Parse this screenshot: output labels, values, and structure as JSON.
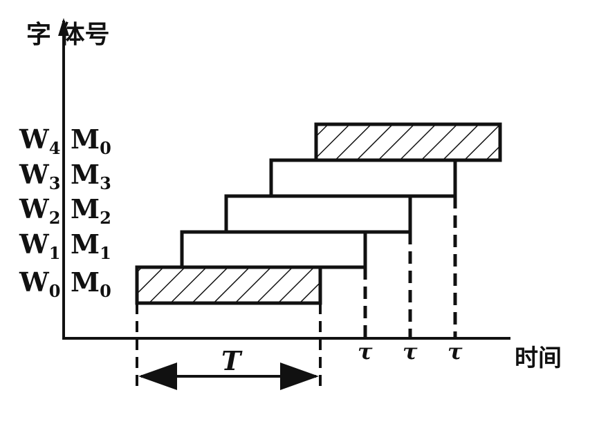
{
  "axes": {
    "y_label": "字 体号",
    "x_label": "时间"
  },
  "rows": [
    {
      "w": "W",
      "w_sub": "0",
      "m": "M",
      "m_sub": "0",
      "hatched": true
    },
    {
      "w": "W",
      "w_sub": "1",
      "m": "M",
      "m_sub": "1",
      "hatched": false
    },
    {
      "w": "W",
      "w_sub": "2",
      "m": "M",
      "m_sub": "2",
      "hatched": false
    },
    {
      "w": "W",
      "w_sub": "3",
      "m": "M",
      "m_sub": "3",
      "hatched": false
    },
    {
      "w": "W",
      "w_sub": "4",
      "m": "M",
      "m_sub": "0",
      "hatched": true
    }
  ],
  "tau_labels": [
    "τ",
    "τ",
    "τ"
  ],
  "period_label": "T"
}
